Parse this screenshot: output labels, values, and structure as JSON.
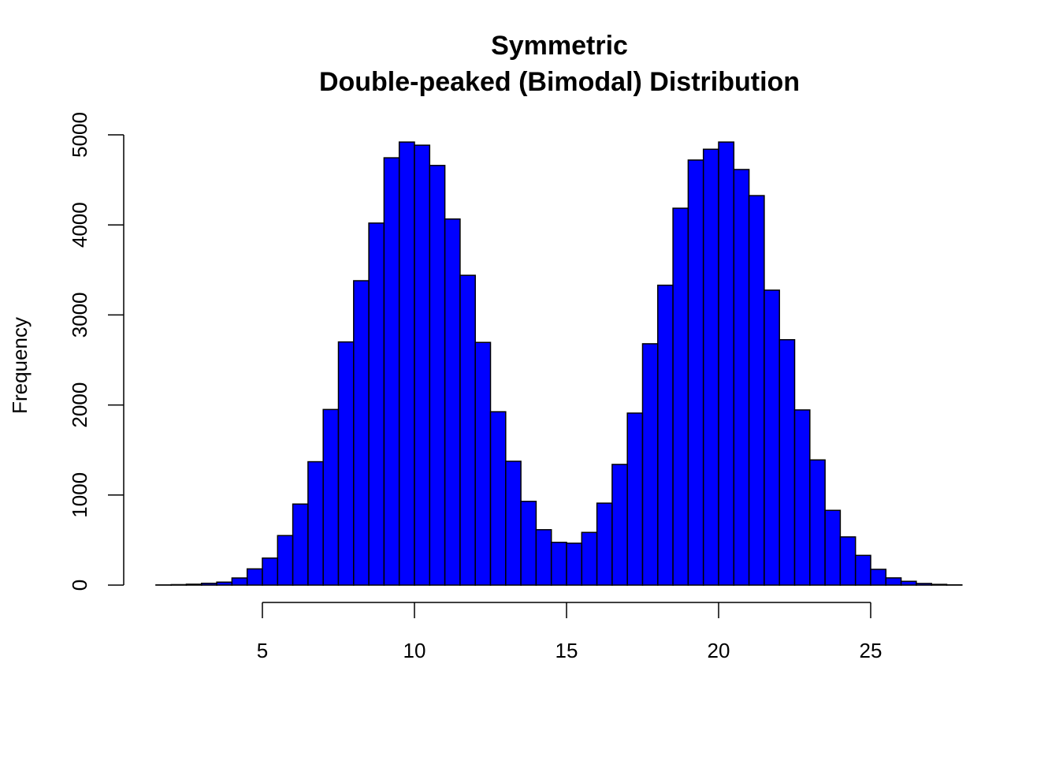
{
  "chart_data": {
    "type": "bar",
    "subtype": "histogram",
    "title": "Symmetric",
    "subtitle": "Double-peaked (Bimodal) Distribution",
    "title_lines": [
      "Symmetric",
      "Double-peaked (Bimodal) Distribution"
    ],
    "xlabel": "",
    "ylabel": "Frequency",
    "bin_width": 0.5,
    "bin_start": 1.5,
    "bin_end": 28.0,
    "xlim": [
      1.5,
      28
    ],
    "ylim": [
      0,
      5000
    ],
    "x_ticks": [
      5,
      10,
      15,
      20,
      25
    ],
    "y_ticks": [
      0,
      1000,
      2000,
      3000,
      4000,
      5000
    ],
    "grid": false,
    "legend": null,
    "bar_fill": "#0000FF",
    "bar_stroke": "#000000",
    "bins": [
      1.5,
      2.0,
      2.5,
      3.0,
      3.5,
      4.0,
      4.5,
      5.0,
      5.5,
      6.0,
      6.5,
      7.0,
      7.5,
      8.0,
      8.5,
      9.0,
      9.5,
      10.0,
      10.5,
      11.0,
      11.5,
      12.0,
      12.5,
      13.0,
      13.5,
      14.0,
      14.5,
      15.0,
      15.5,
      16.0,
      16.5,
      17.0,
      17.5,
      18.0,
      18.5,
      19.0,
      19.5,
      20.0,
      20.5,
      21.0,
      21.5,
      22.0,
      22.5,
      23.0,
      23.5,
      24.0,
      24.5,
      25.0,
      25.5,
      26.0,
      26.5,
      27.0,
      27.5
    ],
    "values": [
      2,
      5,
      10,
      20,
      33,
      79,
      180,
      300,
      550,
      900,
      1370,
      1950,
      2700,
      3380,
      4020,
      4745,
      4920,
      4885,
      4660,
      4065,
      3440,
      2695,
      1925,
      1375,
      930,
      615,
      475,
      465,
      585,
      910,
      1340,
      1910,
      2680,
      3330,
      4185,
      4720,
      4840,
      4920,
      4615,
      4325,
      3275,
      2725,
      1945,
      1390,
      830,
      535,
      330,
      175,
      80,
      42,
      18,
      8,
      3
    ]
  }
}
